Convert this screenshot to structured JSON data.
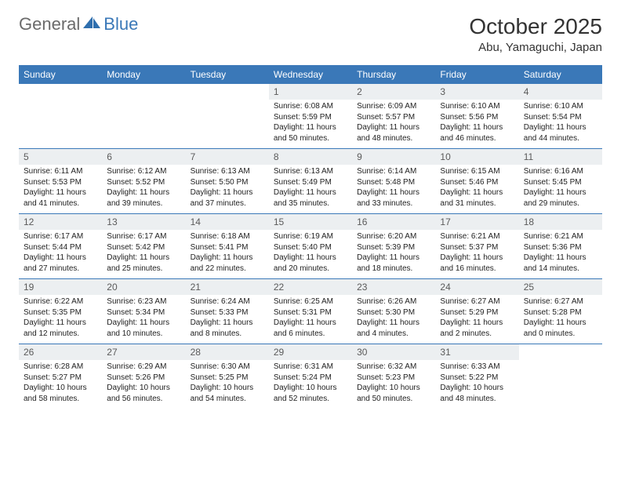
{
  "logo": {
    "text_general": "General",
    "text_blue": "Blue"
  },
  "title": "October 2025",
  "location": "Abu, Yamaguchi, Japan",
  "colors": {
    "header_bg": "#3a78b8",
    "header_text": "#ffffff",
    "band_bg": "#eceff1",
    "band_text": "#5a5a5a",
    "border": "#3a78b8",
    "logo_gray": "#6b6b6b",
    "logo_blue": "#3a78b8"
  },
  "days_of_week": [
    "Sunday",
    "Monday",
    "Tuesday",
    "Wednesday",
    "Thursday",
    "Friday",
    "Saturday"
  ],
  "weeks": [
    [
      {
        "n": "",
        "sr": "",
        "ss": "",
        "dl": ""
      },
      {
        "n": "",
        "sr": "",
        "ss": "",
        "dl": ""
      },
      {
        "n": "",
        "sr": "",
        "ss": "",
        "dl": ""
      },
      {
        "n": "1",
        "sr": "Sunrise: 6:08 AM",
        "ss": "Sunset: 5:59 PM",
        "dl": "Daylight: 11 hours and 50 minutes."
      },
      {
        "n": "2",
        "sr": "Sunrise: 6:09 AM",
        "ss": "Sunset: 5:57 PM",
        "dl": "Daylight: 11 hours and 48 minutes."
      },
      {
        "n": "3",
        "sr": "Sunrise: 6:10 AM",
        "ss": "Sunset: 5:56 PM",
        "dl": "Daylight: 11 hours and 46 minutes."
      },
      {
        "n": "4",
        "sr": "Sunrise: 6:10 AM",
        "ss": "Sunset: 5:54 PM",
        "dl": "Daylight: 11 hours and 44 minutes."
      }
    ],
    [
      {
        "n": "5",
        "sr": "Sunrise: 6:11 AM",
        "ss": "Sunset: 5:53 PM",
        "dl": "Daylight: 11 hours and 41 minutes."
      },
      {
        "n": "6",
        "sr": "Sunrise: 6:12 AM",
        "ss": "Sunset: 5:52 PM",
        "dl": "Daylight: 11 hours and 39 minutes."
      },
      {
        "n": "7",
        "sr": "Sunrise: 6:13 AM",
        "ss": "Sunset: 5:50 PM",
        "dl": "Daylight: 11 hours and 37 minutes."
      },
      {
        "n": "8",
        "sr": "Sunrise: 6:13 AM",
        "ss": "Sunset: 5:49 PM",
        "dl": "Daylight: 11 hours and 35 minutes."
      },
      {
        "n": "9",
        "sr": "Sunrise: 6:14 AM",
        "ss": "Sunset: 5:48 PM",
        "dl": "Daylight: 11 hours and 33 minutes."
      },
      {
        "n": "10",
        "sr": "Sunrise: 6:15 AM",
        "ss": "Sunset: 5:46 PM",
        "dl": "Daylight: 11 hours and 31 minutes."
      },
      {
        "n": "11",
        "sr": "Sunrise: 6:16 AM",
        "ss": "Sunset: 5:45 PM",
        "dl": "Daylight: 11 hours and 29 minutes."
      }
    ],
    [
      {
        "n": "12",
        "sr": "Sunrise: 6:17 AM",
        "ss": "Sunset: 5:44 PM",
        "dl": "Daylight: 11 hours and 27 minutes."
      },
      {
        "n": "13",
        "sr": "Sunrise: 6:17 AM",
        "ss": "Sunset: 5:42 PM",
        "dl": "Daylight: 11 hours and 25 minutes."
      },
      {
        "n": "14",
        "sr": "Sunrise: 6:18 AM",
        "ss": "Sunset: 5:41 PM",
        "dl": "Daylight: 11 hours and 22 minutes."
      },
      {
        "n": "15",
        "sr": "Sunrise: 6:19 AM",
        "ss": "Sunset: 5:40 PM",
        "dl": "Daylight: 11 hours and 20 minutes."
      },
      {
        "n": "16",
        "sr": "Sunrise: 6:20 AM",
        "ss": "Sunset: 5:39 PM",
        "dl": "Daylight: 11 hours and 18 minutes."
      },
      {
        "n": "17",
        "sr": "Sunrise: 6:21 AM",
        "ss": "Sunset: 5:37 PM",
        "dl": "Daylight: 11 hours and 16 minutes."
      },
      {
        "n": "18",
        "sr": "Sunrise: 6:21 AM",
        "ss": "Sunset: 5:36 PM",
        "dl": "Daylight: 11 hours and 14 minutes."
      }
    ],
    [
      {
        "n": "19",
        "sr": "Sunrise: 6:22 AM",
        "ss": "Sunset: 5:35 PM",
        "dl": "Daylight: 11 hours and 12 minutes."
      },
      {
        "n": "20",
        "sr": "Sunrise: 6:23 AM",
        "ss": "Sunset: 5:34 PM",
        "dl": "Daylight: 11 hours and 10 minutes."
      },
      {
        "n": "21",
        "sr": "Sunrise: 6:24 AM",
        "ss": "Sunset: 5:33 PM",
        "dl": "Daylight: 11 hours and 8 minutes."
      },
      {
        "n": "22",
        "sr": "Sunrise: 6:25 AM",
        "ss": "Sunset: 5:31 PM",
        "dl": "Daylight: 11 hours and 6 minutes."
      },
      {
        "n": "23",
        "sr": "Sunrise: 6:26 AM",
        "ss": "Sunset: 5:30 PM",
        "dl": "Daylight: 11 hours and 4 minutes."
      },
      {
        "n": "24",
        "sr": "Sunrise: 6:27 AM",
        "ss": "Sunset: 5:29 PM",
        "dl": "Daylight: 11 hours and 2 minutes."
      },
      {
        "n": "25",
        "sr": "Sunrise: 6:27 AM",
        "ss": "Sunset: 5:28 PM",
        "dl": "Daylight: 11 hours and 0 minutes."
      }
    ],
    [
      {
        "n": "26",
        "sr": "Sunrise: 6:28 AM",
        "ss": "Sunset: 5:27 PM",
        "dl": "Daylight: 10 hours and 58 minutes."
      },
      {
        "n": "27",
        "sr": "Sunrise: 6:29 AM",
        "ss": "Sunset: 5:26 PM",
        "dl": "Daylight: 10 hours and 56 minutes."
      },
      {
        "n": "28",
        "sr": "Sunrise: 6:30 AM",
        "ss": "Sunset: 5:25 PM",
        "dl": "Daylight: 10 hours and 54 minutes."
      },
      {
        "n": "29",
        "sr": "Sunrise: 6:31 AM",
        "ss": "Sunset: 5:24 PM",
        "dl": "Daylight: 10 hours and 52 minutes."
      },
      {
        "n": "30",
        "sr": "Sunrise: 6:32 AM",
        "ss": "Sunset: 5:23 PM",
        "dl": "Daylight: 10 hours and 50 minutes."
      },
      {
        "n": "31",
        "sr": "Sunrise: 6:33 AM",
        "ss": "Sunset: 5:22 PM",
        "dl": "Daylight: 10 hours and 48 minutes."
      },
      {
        "n": "",
        "sr": "",
        "ss": "",
        "dl": ""
      }
    ]
  ]
}
